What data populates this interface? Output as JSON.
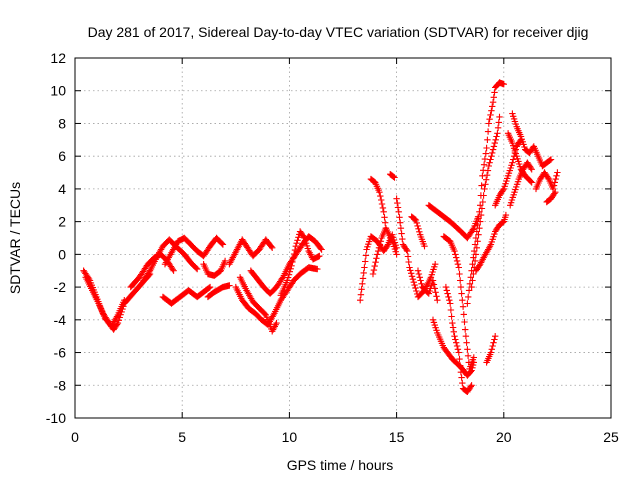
{
  "chart_data": {
    "type": "scatter",
    "title": "Day 281 of 2017, Sidereal Day-to-day VTEC variation (SDTVAR) for receiver djig",
    "xlabel": "GPS time / hours",
    "ylabel": "SDTVAR / TECUs",
    "xlim": [
      0,
      25
    ],
    "ylim": [
      -10,
      12
    ],
    "xticks": [
      0,
      5,
      10,
      15,
      20,
      25
    ],
    "yticks": [
      -10,
      -8,
      -6,
      -4,
      -2,
      0,
      2,
      4,
      6,
      8,
      10,
      12
    ],
    "grid": true,
    "marker": "+",
    "color": "#ff0000",
    "tracks": [
      [
        [
          0.4,
          -1.0
        ],
        [
          0.7,
          -1.6
        ],
        [
          1.0,
          -2.6
        ],
        [
          1.3,
          -3.6
        ],
        [
          1.6,
          -4.2
        ],
        [
          1.8,
          -4.6
        ],
        [
          2.0,
          -4.2
        ],
        [
          2.3,
          -3.0
        ],
        [
          2.7,
          -2.4
        ],
        [
          3.1,
          -1.8
        ],
        [
          3.5,
          -1.2
        ]
      ],
      [
        [
          0.5,
          -1.4
        ],
        [
          0.8,
          -2.2
        ],
        [
          1.1,
          -3.0
        ],
        [
          1.4,
          -3.9
        ],
        [
          1.7,
          -4.4
        ],
        [
          2.0,
          -3.7
        ],
        [
          2.3,
          -2.8
        ]
      ],
      [
        [
          2.6,
          -2.0
        ],
        [
          3.0,
          -1.4
        ],
        [
          3.4,
          -0.6
        ],
        [
          3.7,
          -0.2
        ],
        [
          4.0,
          0.0
        ],
        [
          4.3,
          -0.4
        ],
        [
          4.6,
          -1.0
        ]
      ],
      [
        [
          3.2,
          -1.6
        ],
        [
          3.5,
          -1.0
        ],
        [
          3.8,
          -0.2
        ],
        [
          4.1,
          0.5
        ],
        [
          4.4,
          0.9
        ],
        [
          4.7,
          0.5
        ],
        [
          5.1,
          0.0
        ],
        [
          5.4,
          -0.5
        ],
        [
          5.7,
          -0.9
        ]
      ],
      [
        [
          4.2,
          -0.6
        ],
        [
          4.5,
          0.1
        ],
        [
          4.8,
          0.8
        ],
        [
          5.1,
          1.0
        ],
        [
          5.4,
          0.6
        ],
        [
          5.7,
          0.2
        ],
        [
          6.0,
          -0.1
        ],
        [
          6.3,
          0.5
        ],
        [
          6.6,
          1.0
        ],
        [
          6.9,
          0.6
        ]
      ],
      [
        [
          4.1,
          -2.6
        ],
        [
          4.5,
          -3.0
        ],
        [
          4.9,
          -2.6
        ],
        [
          5.3,
          -2.2
        ],
        [
          5.7,
          -2.6
        ],
        [
          6.0,
          -2.3
        ],
        [
          6.3,
          -2.0
        ]
      ],
      [
        [
          6.0,
          -0.6
        ],
        [
          6.2,
          -1.2
        ],
        [
          6.5,
          -1.3
        ],
        [
          6.8,
          -1.0
        ],
        [
          7.0,
          -0.4
        ]
      ],
      [
        [
          6.2,
          -2.6
        ],
        [
          6.5,
          -2.3
        ],
        [
          6.9,
          -2.0
        ],
        [
          7.2,
          -1.9
        ]
      ],
      [
        [
          7.2,
          -0.6
        ],
        [
          7.4,
          -0.1
        ],
        [
          7.6,
          0.4
        ],
        [
          7.8,
          0.9
        ],
        [
          8.0,
          0.5
        ],
        [
          8.3,
          -0.1
        ],
        [
          8.6,
          0.3
        ],
        [
          8.9,
          0.9
        ],
        [
          9.2,
          0.4
        ]
      ],
      [
        [
          7.5,
          -2.0
        ],
        [
          7.8,
          -2.8
        ],
        [
          8.1,
          -3.3
        ],
        [
          8.4,
          -3.6
        ],
        [
          8.7,
          -4.0
        ],
        [
          9.0,
          -4.3
        ],
        [
          9.3,
          -3.6
        ],
        [
          9.6,
          -2.8
        ],
        [
          9.9,
          -2.2
        ],
        [
          10.2,
          -1.6
        ],
        [
          10.5,
          -1.2
        ],
        [
          10.9,
          -0.8
        ],
        [
          11.3,
          -0.9
        ]
      ],
      [
        [
          7.7,
          -1.4
        ],
        [
          8.0,
          -2.2
        ],
        [
          8.3,
          -2.9
        ],
        [
          8.6,
          -3.3
        ],
        [
          8.9,
          -3.7
        ],
        [
          9.2,
          -4.7
        ],
        [
          9.4,
          -4.2
        ]
      ],
      [
        [
          8.2,
          -1.0
        ],
        [
          8.5,
          -1.5
        ],
        [
          8.8,
          -2.0
        ],
        [
          9.1,
          -2.4
        ],
        [
          9.4,
          -2.0
        ],
        [
          9.7,
          -1.4
        ],
        [
          10.0,
          -0.6
        ],
        [
          10.3,
          0.0
        ],
        [
          10.6,
          0.6
        ],
        [
          10.9,
          1.1
        ],
        [
          11.2,
          0.8
        ],
        [
          11.5,
          0.3
        ]
      ],
      [
        [
          9.6,
          -2.5
        ],
        [
          9.9,
          -1.6
        ],
        [
          10.1,
          -0.7
        ],
        [
          10.3,
          0.5
        ],
        [
          10.5,
          1.4
        ],
        [
          10.7,
          1.0
        ],
        [
          10.9,
          0.2
        ],
        [
          11.1,
          -0.3
        ],
        [
          11.4,
          -0.1
        ]
      ],
      [
        [
          13.3,
          -2.8
        ],
        [
          13.4,
          -1.8
        ],
        [
          13.5,
          -0.8
        ],
        [
          13.6,
          0.3
        ],
        [
          13.8,
          1.1
        ],
        [
          14.1,
          0.8
        ],
        [
          14.4,
          0.2
        ],
        [
          14.6,
          0.6
        ],
        [
          14.8,
          1.2
        ],
        [
          15.0,
          0.4
        ]
      ],
      [
        [
          13.9,
          -1.2
        ],
        [
          14.1,
          0.0
        ],
        [
          14.3,
          1.0
        ],
        [
          14.5,
          1.6
        ],
        [
          14.8,
          0.8
        ],
        [
          15.0,
          0.0
        ]
      ],
      [
        [
          13.8,
          4.6
        ],
        [
          14.0,
          4.4
        ],
        [
          14.2,
          3.8
        ],
        [
          14.4,
          2.6
        ],
        [
          14.5,
          1.6
        ]
      ],
      [
        [
          14.7,
          4.9
        ],
        [
          14.9,
          4.7
        ]
      ],
      [
        [
          15.0,
          3.4
        ],
        [
          15.1,
          2.6
        ],
        [
          15.2,
          1.6
        ],
        [
          15.3,
          0.6
        ],
        [
          15.5,
          0.2
        ],
        [
          15.6,
          -0.8
        ],
        [
          15.8,
          -1.7
        ],
        [
          16.0,
          -2.6
        ],
        [
          16.3,
          -2.2
        ],
        [
          16.6,
          -1.4
        ],
        [
          16.8,
          -0.6
        ]
      ],
      [
        [
          15.7,
          2.3
        ],
        [
          15.9,
          2.1
        ],
        [
          16.1,
          1.2
        ],
        [
          16.3,
          0.5
        ]
      ],
      [
        [
          16.0,
          -1.0
        ],
        [
          16.2,
          -2.0
        ],
        [
          16.5,
          -2.4
        ],
        [
          16.7,
          -1.6
        ],
        [
          16.9,
          -2.8
        ]
      ],
      [
        [
          16.5,
          3.0
        ],
        [
          17.0,
          2.5
        ],
        [
          17.5,
          2.0
        ],
        [
          18.0,
          1.4
        ],
        [
          18.3,
          1.0
        ],
        [
          18.6,
          1.6
        ],
        [
          18.8,
          2.3
        ]
      ],
      [
        [
          16.7,
          -4.0
        ],
        [
          16.9,
          -4.8
        ],
        [
          17.2,
          -5.7
        ],
        [
          17.6,
          -6.4
        ],
        [
          18.0,
          -6.9
        ],
        [
          18.3,
          -7.4
        ],
        [
          18.5,
          -7.1
        ],
        [
          18.6,
          -6.6
        ]
      ],
      [
        [
          17.2,
          1.1
        ],
        [
          17.5,
          0.8
        ],
        [
          17.7,
          0.2
        ],
        [
          17.9,
          -0.8
        ],
        [
          18.0,
          -2.0
        ],
        [
          18.1,
          -3.2
        ],
        [
          18.2,
          -4.6
        ],
        [
          18.3,
          -5.8
        ],
        [
          18.4,
          -7.0
        ],
        [
          18.6,
          -6.3
        ]
      ],
      [
        [
          17.3,
          -2.0
        ],
        [
          17.5,
          -3.0
        ],
        [
          17.6,
          -4.2
        ],
        [
          17.7,
          -5.0
        ],
        [
          17.9,
          -6.0
        ],
        [
          18.0,
          -7.2
        ],
        [
          18.1,
          -8.2
        ],
        [
          18.3,
          -8.4
        ],
        [
          18.5,
          -8.0
        ]
      ],
      [
        [
          18.3,
          -3.0
        ],
        [
          18.5,
          -1.0
        ],
        [
          18.7,
          1.0
        ],
        [
          18.9,
          3.0
        ],
        [
          19.0,
          4.8
        ],
        [
          19.2,
          6.5
        ],
        [
          19.3,
          8.0
        ],
        [
          19.5,
          9.3
        ],
        [
          19.6,
          10.2
        ],
        [
          19.8,
          10.5
        ],
        [
          20.0,
          10.4
        ]
      ],
      [
        [
          18.5,
          -2.0
        ],
        [
          18.7,
          0.0
        ],
        [
          18.9,
          2.0
        ],
        [
          19.1,
          4.0
        ],
        [
          19.3,
          5.4
        ],
        [
          19.5,
          6.4
        ],
        [
          19.7,
          7.4
        ],
        [
          19.8,
          8.4
        ]
      ],
      [
        [
          18.7,
          -1.0
        ],
        [
          18.9,
          -0.6
        ],
        [
          19.1,
          -0.1
        ],
        [
          19.4,
          0.6
        ],
        [
          19.6,
          1.4
        ],
        [
          19.8,
          1.8
        ],
        [
          20.0,
          2.0
        ],
        [
          20.1,
          2.4
        ]
      ],
      [
        [
          19.2,
          -6.6
        ],
        [
          19.4,
          -6.0
        ],
        [
          19.6,
          -5.0
        ]
      ],
      [
        [
          19.6,
          3.0
        ],
        [
          19.8,
          3.6
        ],
        [
          20.0,
          4.0
        ],
        [
          20.2,
          4.8
        ],
        [
          20.4,
          5.6
        ],
        [
          20.6,
          6.6
        ],
        [
          20.8,
          7.0
        ]
      ],
      [
        [
          20.3,
          3.0
        ],
        [
          20.5,
          3.8
        ],
        [
          20.7,
          4.6
        ],
        [
          20.9,
          5.2
        ],
        [
          21.1,
          5.6
        ],
        [
          21.3,
          5.2
        ]
      ],
      [
        [
          20.4,
          8.6
        ],
        [
          20.6,
          7.8
        ],
        [
          20.8,
          7.2
        ],
        [
          21.0,
          6.4
        ],
        [
          21.2,
          6.2
        ],
        [
          21.4,
          6.6
        ],
        [
          21.6,
          6.0
        ],
        [
          21.8,
          5.4
        ],
        [
          22.0,
          5.6
        ],
        [
          22.2,
          5.8
        ]
      ],
      [
        [
          20.2,
          7.4
        ],
        [
          20.4,
          6.8
        ],
        [
          20.6,
          6.0
        ],
        [
          20.8,
          5.2
        ],
        [
          21.0,
          4.8
        ],
        [
          21.3,
          4.4
        ]
      ],
      [
        [
          21.5,
          4.0
        ],
        [
          21.7,
          4.6
        ],
        [
          21.9,
          5.0
        ],
        [
          22.1,
          4.6
        ],
        [
          22.3,
          4.0
        ],
        [
          22.5,
          5.0
        ]
      ],
      [
        [
          22.0,
          3.2
        ],
        [
          22.2,
          3.4
        ],
        [
          22.4,
          3.8
        ]
      ]
    ]
  }
}
